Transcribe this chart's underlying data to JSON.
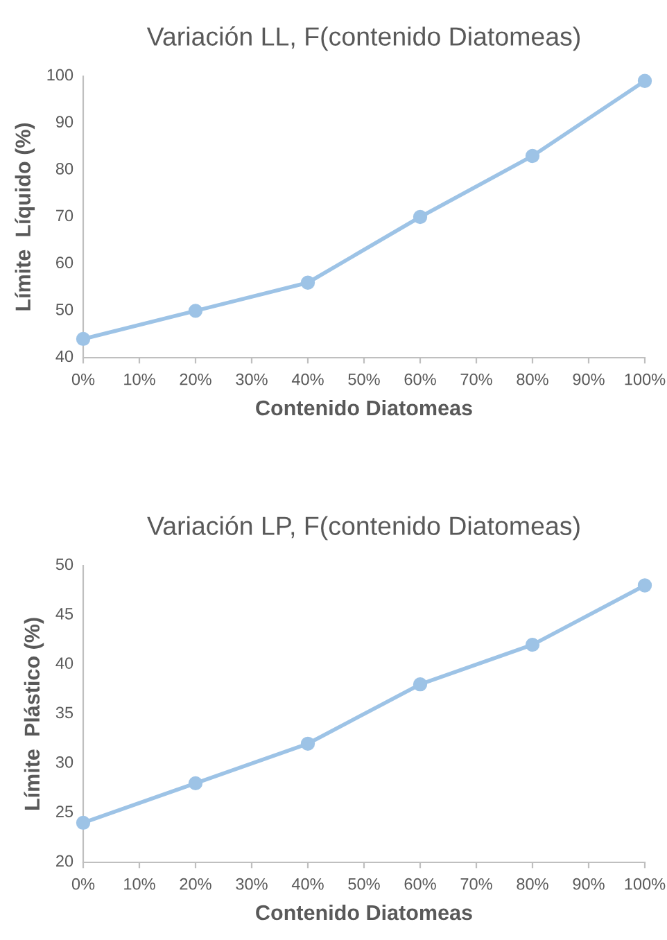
{
  "chart_data": [
    {
      "type": "line",
      "title": "Variación LL, F(contenido Diatomeas)",
      "xlabel": "Contenido Diatomeas",
      "ylabel": "Límite  Líquido (%)",
      "x": [
        0,
        20,
        40,
        60,
        80,
        100
      ],
      "series": [
        {
          "color": "#9dc3e6",
          "values": [
            44,
            50,
            56,
            70,
            83,
            99
          ]
        }
      ],
      "xlim": [
        0,
        100
      ],
      "xticks": [
        {
          "value": 0,
          "label": "0%"
        },
        {
          "value": 10,
          "label": "10%"
        },
        {
          "value": 20,
          "label": "20%"
        },
        {
          "value": 30,
          "label": "30%"
        },
        {
          "value": 40,
          "label": "40%"
        },
        {
          "value": 50,
          "label": "50%"
        },
        {
          "value": 60,
          "label": "60%"
        },
        {
          "value": 70,
          "label": "70%"
        },
        {
          "value": 80,
          "label": "80%"
        },
        {
          "value": 90,
          "label": "90%"
        },
        {
          "value": 100,
          "label": "100%"
        }
      ],
      "ylim": [
        40,
        100
      ],
      "yticks": [
        40,
        50,
        60,
        70,
        80,
        90,
        100
      ],
      "grid": false,
      "marker": "circle",
      "line_style": "solid"
    },
    {
      "type": "line",
      "title": "Variación LP, F(contenido Diatomeas)",
      "xlabel": "Contenido Diatomeas",
      "ylabel": "Límite  Plástico (%)",
      "x": [
        0,
        20,
        40,
        60,
        80,
        100
      ],
      "series": [
        {
          "color": "#9dc3e6",
          "values": [
            24,
            28,
            32,
            38,
            42,
            48
          ]
        }
      ],
      "xlim": [
        0,
        100
      ],
      "xticks": [
        {
          "value": 0,
          "label": "0%"
        },
        {
          "value": 10,
          "label": "10%"
        },
        {
          "value": 20,
          "label": "20%"
        },
        {
          "value": 30,
          "label": "30%"
        },
        {
          "value": 40,
          "label": "40%"
        },
        {
          "value": 50,
          "label": "50%"
        },
        {
          "value": 60,
          "label": "60%"
        },
        {
          "value": 70,
          "label": "70%"
        },
        {
          "value": 80,
          "label": "80%"
        },
        {
          "value": 90,
          "label": "90%"
        },
        {
          "value": 100,
          "label": "100%"
        }
      ],
      "ylim": [
        20,
        50
      ],
      "yticks": [
        20,
        25,
        30,
        35,
        40,
        45,
        50
      ],
      "grid": false,
      "marker": "circle",
      "line_style": "solid"
    }
  ]
}
